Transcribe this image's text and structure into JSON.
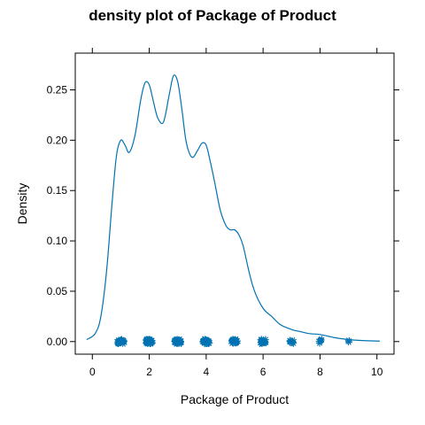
{
  "chart_data": {
    "type": "line",
    "title": "density plot of Package of Product",
    "xlabel": "Package of Product",
    "ylabel": "Density",
    "xlim": [
      -0.6,
      10.6
    ],
    "ylim": [
      -0.0125,
      0.2865
    ],
    "x_ticks": [
      0,
      2,
      4,
      6,
      8,
      10
    ],
    "y_ticks": [
      0.0,
      0.05,
      0.1,
      0.15,
      0.2,
      0.25
    ],
    "x_tick_labels": [
      "0",
      "2",
      "4",
      "6",
      "8",
      "10"
    ],
    "y_tick_labels": [
      "0.00",
      "0.05",
      "0.10",
      "0.15",
      "0.20",
      "0.25"
    ],
    "grid": false,
    "series": [
      {
        "color": "#0072B2",
        "density": {
          "x": [
            -0.2,
            0.1,
            0.3,
            0.5,
            0.7,
            0.85,
            1.0,
            1.15,
            1.3,
            1.5,
            1.7,
            1.85,
            2.0,
            2.15,
            2.3,
            2.5,
            2.7,
            2.85,
            3.0,
            3.15,
            3.3,
            3.5,
            3.7,
            3.85,
            4.0,
            4.15,
            4.3,
            4.5,
            4.7,
            4.85,
            5.0,
            5.15,
            5.3,
            5.5,
            5.7,
            6.0,
            6.3,
            6.6,
            7.0,
            7.3,
            7.6,
            8.0,
            8.5,
            9.0,
            9.5,
            10.1
          ],
          "y": [
            0.002,
            0.008,
            0.025,
            0.07,
            0.14,
            0.185,
            0.2,
            0.195,
            0.188,
            0.205,
            0.24,
            0.257,
            0.255,
            0.238,
            0.222,
            0.218,
            0.245,
            0.264,
            0.258,
            0.23,
            0.198,
            0.183,
            0.19,
            0.197,
            0.195,
            0.178,
            0.158,
            0.13,
            0.115,
            0.111,
            0.111,
            0.106,
            0.095,
            0.07,
            0.05,
            0.033,
            0.025,
            0.017,
            0.012,
            0.01,
            0.008,
            0.007,
            0.004,
            0.002,
            0.001,
            0.0005
          ]
        },
        "rug_points": [
          {
            "x": 1,
            "count": 30
          },
          {
            "x": 2,
            "count": 30
          },
          {
            "x": 3,
            "count": 30
          },
          {
            "x": 4,
            "count": 26
          },
          {
            "x": 5,
            "count": 24
          },
          {
            "x": 6,
            "count": 16
          },
          {
            "x": 7,
            "count": 10
          },
          {
            "x": 8,
            "count": 5
          },
          {
            "x": 9,
            "count": 2
          }
        ]
      }
    ]
  }
}
